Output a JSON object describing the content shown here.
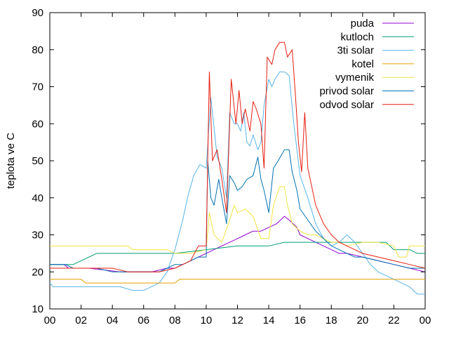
{
  "chart_data": {
    "type": "line",
    "xlabel": "",
    "ylabel": "teplota ve C",
    "xlim": [
      0,
      24
    ],
    "ylim": [
      10,
      90
    ],
    "x_ticks": [
      "00",
      "02",
      "04",
      "06",
      "08",
      "10",
      "12",
      "14",
      "16",
      "18",
      "20",
      "22",
      "00"
    ],
    "y_ticks": [
      10,
      20,
      30,
      40,
      50,
      60,
      70,
      80,
      90
    ],
    "grid": false,
    "legend_position": "top-right",
    "series": [
      {
        "name": "puda",
        "color": "#9400d3",
        "x": [
          0,
          0.9,
          1.2,
          2.5,
          4.5,
          5.5,
          6.5,
          7.5,
          8,
          8.5,
          9,
          9.5,
          10,
          10.5,
          11,
          11.5,
          12,
          12.5,
          13,
          13.5,
          14,
          14.5,
          15,
          15.3,
          15.8,
          16,
          16.5,
          17,
          17.5,
          18,
          18.5,
          19,
          20,
          21,
          22,
          23,
          24
        ],
        "y": [
          22,
          22,
          21,
          21,
          20,
          20,
          20,
          21,
          21,
          22,
          23,
          24,
          25,
          26,
          27,
          28,
          29,
          30,
          31,
          31,
          32,
          33,
          35,
          34,
          32,
          30,
          29,
          28,
          27,
          26,
          25,
          25,
          24,
          23,
          22,
          21,
          20
        ]
      },
      {
        "name": "kutloch",
        "color": "#009e73",
        "x": [
          0,
          1,
          1.5,
          3,
          4,
          6,
          8,
          10,
          12,
          14,
          15,
          16,
          17,
          18,
          19,
          20,
          21.5,
          22,
          23,
          23.5,
          24
        ],
        "y": [
          22,
          22,
          22,
          25,
          25,
          25,
          25,
          26,
          27,
          27,
          28,
          28,
          28,
          28,
          28,
          28,
          28,
          26,
          26,
          25,
          25
        ]
      },
      {
        "name": "3ti solar",
        "color": "#56b4e9",
        "x": [
          0,
          0.2,
          1,
          3,
          4.5,
          5.3,
          6,
          6.5,
          7,
          7.5,
          8,
          8.5,
          8.8,
          9.2,
          9.6,
          10,
          10.3,
          10.7,
          11,
          11.3,
          11.5,
          11.8,
          12,
          12.2,
          12.4,
          12.6,
          12.8,
          13,
          13.3,
          13.5,
          13.7,
          14,
          14.2,
          14.4,
          14.7,
          15,
          15.3,
          15.6,
          16,
          16.5,
          17,
          17.5,
          18,
          18.5,
          19,
          19.5,
          20,
          20.5,
          21,
          22,
          23,
          23.5,
          24
        ],
        "y": [
          17,
          16,
          16,
          16,
          16,
          15,
          15,
          16,
          17,
          20,
          26,
          34,
          40,
          46,
          49,
          48,
          67,
          51,
          48,
          40,
          63,
          60,
          60,
          58,
          63,
          55,
          54,
          57,
          53,
          55,
          65,
          72,
          70,
          72,
          74,
          74,
          73,
          60,
          46,
          40,
          33,
          29,
          27,
          28,
          30,
          28,
          25,
          22,
          20,
          18,
          16,
          14,
          14
        ]
      },
      {
        "name": "kotel",
        "color": "#e69f00",
        "x": [
          0,
          2,
          2.3,
          8,
          8.3,
          24
        ],
        "y": [
          18,
          18,
          17,
          17,
          18,
          18
        ]
      },
      {
        "name": "vymenik",
        "color": "#f0e442",
        "x": [
          0,
          4,
          5,
          5.3,
          7.5,
          8,
          9,
          10,
          10.2,
          10.5,
          11,
          11.5,
          11.8,
          12,
          12.5,
          13,
          13.5,
          14,
          14.3,
          14.7,
          15,
          15.2,
          15.5,
          16,
          16.5,
          17,
          17.5,
          18,
          18.5,
          19,
          20,
          21,
          22,
          22.3,
          22.8,
          23,
          23.5,
          24
        ],
        "y": [
          27,
          27,
          27,
          26,
          26,
          25,
          25,
          26,
          36,
          30,
          28,
          34,
          38,
          36,
          37,
          35,
          29,
          29,
          38,
          43,
          43,
          38,
          33,
          31,
          30,
          30,
          29,
          28,
          28,
          27,
          28,
          28,
          27,
          24,
          24,
          27,
          27,
          27
        ]
      },
      {
        "name": "privod solar",
        "color": "#0072b2",
        "x": [
          0,
          1,
          1.5,
          3,
          4,
          5,
          6,
          7,
          7.5,
          8,
          8.5,
          9,
          9.5,
          10,
          10.1,
          10.3,
          10.5,
          10.8,
          11,
          11.3,
          11.5,
          11.8,
          12,
          12.3,
          12.6,
          13,
          13.3,
          13.5,
          13.7,
          14,
          14.3,
          14.6,
          15,
          15.3,
          15.5,
          15.8,
          16,
          16.5,
          17,
          17.5,
          18,
          18.5,
          19,
          19.5,
          20,
          21,
          22,
          23,
          24
        ],
        "y": [
          22,
          22,
          21,
          21,
          20,
          20,
          20,
          20,
          21,
          22,
          22,
          23,
          24,
          24,
          50,
          40,
          38,
          45,
          40,
          33,
          46,
          44,
          42,
          43,
          45,
          46,
          51,
          45,
          42,
          36,
          48,
          50,
          53,
          53,
          47,
          42,
          37,
          34,
          31,
          29,
          27,
          26,
          25,
          24,
          24,
          23,
          22,
          21,
          21
        ]
      },
      {
        "name": "odvod solar",
        "color": "#e51e10",
        "x": [
          0,
          1,
          2,
          4,
          5,
          6,
          7,
          8,
          8.5,
          9,
          9.5,
          9.8,
          10,
          10.2,
          10.4,
          10.7,
          11,
          11.3,
          11.6,
          11.9,
          12.1,
          12.3,
          12.5,
          12.8,
          13,
          13.2,
          13.5,
          13.7,
          13.9,
          14.2,
          14.4,
          14.7,
          15,
          15.2,
          15.5,
          15.7,
          15.9,
          16.1,
          16.3,
          16.5,
          16.8,
          17,
          17.5,
          18,
          18.5,
          19,
          19.5,
          20,
          21,
          22,
          23,
          24
        ],
        "y": [
          21,
          21,
          21,
          21,
          20,
          20,
          20,
          21,
          22,
          23,
          27,
          27,
          27,
          74,
          50,
          53,
          45,
          36,
          72,
          60,
          69,
          60,
          64,
          58,
          66,
          64,
          60,
          48,
          78,
          76,
          80,
          82,
          82,
          78,
          80,
          68,
          55,
          47,
          63,
          48,
          42,
          38,
          33,
          30,
          28,
          27,
          26,
          25,
          24,
          23,
          22,
          21
        ]
      }
    ]
  }
}
